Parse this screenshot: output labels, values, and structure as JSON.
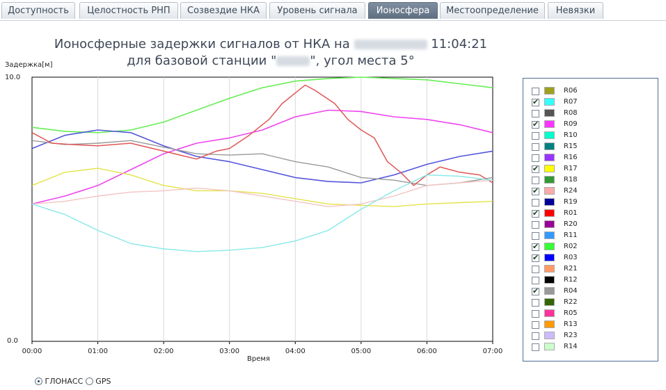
{
  "tabs": [
    {
      "label": "Доступность",
      "active": false
    },
    {
      "label": "Целостность РНП",
      "active": false
    },
    {
      "label": "Созвездие НКА",
      "active": false
    },
    {
      "label": "Уровень сигнала",
      "active": false
    },
    {
      "label": "Ионосфера",
      "active": true
    },
    {
      "label": "Местоопределение",
      "active": false
    },
    {
      "label": "Невязки",
      "active": false
    }
  ],
  "title": {
    "line1_prefix": "Ионосферные задержки сигналов от НКА на",
    "line1_time": "11:04:21",
    "line2_prefix": "для базовой станции \"",
    "line2_suffix": "\", угол места 5°"
  },
  "legend": [
    {
      "name": "R06",
      "checked": false,
      "color": "#a0a020"
    },
    {
      "name": "R07",
      "checked": true,
      "color": "#33ffff"
    },
    {
      "name": "R08",
      "checked": false,
      "color": "#555555"
    },
    {
      "name": "R09",
      "checked": true,
      "color": "#ff33ff"
    },
    {
      "name": "R10",
      "checked": false,
      "color": "#00ffcc"
    },
    {
      "name": "R15",
      "checked": false,
      "color": "#008080"
    },
    {
      "name": "R16",
      "checked": false,
      "color": "#9933ff"
    },
    {
      "name": "R17",
      "checked": true,
      "color": "#ffff00"
    },
    {
      "name": "R18",
      "checked": false,
      "color": "#339933"
    },
    {
      "name": "R24",
      "checked": true,
      "color": "#ffaaaa"
    },
    {
      "name": "R19",
      "checked": false,
      "color": "#000099"
    },
    {
      "name": "R01",
      "checked": true,
      "color": "#ff0000"
    },
    {
      "name": "R20",
      "checked": false,
      "color": "#990099"
    },
    {
      "name": "R11",
      "checked": false,
      "color": "#3399ff"
    },
    {
      "name": "R02",
      "checked": true,
      "color": "#33ff33"
    },
    {
      "name": "R03",
      "checked": true,
      "color": "#0000ff"
    },
    {
      "name": "R21",
      "checked": false,
      "color": "#ff9966"
    },
    {
      "name": "R12",
      "checked": false,
      "color": "#000000"
    },
    {
      "name": "R04",
      "checked": true,
      "color": "#999999"
    },
    {
      "name": "R22",
      "checked": false,
      "color": "#336600"
    },
    {
      "name": "R05",
      "checked": false,
      "color": "#ff3399"
    },
    {
      "name": "R13",
      "checked": false,
      "color": "#ff9900"
    },
    {
      "name": "R23",
      "checked": false,
      "color": "#ccbbff"
    },
    {
      "name": "R14",
      "checked": false,
      "color": "#ccffcc"
    }
  ],
  "radios": {
    "glonass": "ГЛОНАСС",
    "gps": "GPS",
    "selected": "glonass"
  },
  "chart_data": {
    "type": "line",
    "title": "",
    "ylabel": "Задержка[м]",
    "xlabel": "Время",
    "ylim": [
      0,
      10
    ],
    "ytick_labels": [
      "0.0",
      "10.0"
    ],
    "xlim": [
      0,
      7
    ],
    "xtick_labels": [
      "00:00",
      "01:00",
      "02:00",
      "03:00",
      "04:00",
      "05:00",
      "06:00",
      "07:00"
    ],
    "series": [
      {
        "name": "R02",
        "color": "#66ee55",
        "width": 1.6,
        "x": [
          0,
          0.5,
          1.0,
          1.5,
          2.0,
          2.5,
          3.0,
          3.5,
          4.0,
          4.5,
          5.0,
          5.5,
          6.0,
          6.5,
          7.0
        ],
        "y": [
          8.1,
          7.95,
          7.9,
          8.0,
          8.3,
          8.75,
          9.2,
          9.6,
          9.85,
          9.95,
          10.0,
          9.95,
          9.9,
          9.75,
          9.6
        ]
      },
      {
        "name": "R09",
        "color": "#ee44ee",
        "width": 1.6,
        "x": [
          0,
          0.5,
          1.0,
          1.5,
          2.0,
          2.5,
          3.0,
          3.5,
          4.0,
          4.5,
          5.0,
          5.5,
          6.0,
          6.5,
          7.0
        ],
        "y": [
          5.2,
          5.5,
          5.9,
          6.5,
          7.1,
          7.5,
          7.7,
          8.0,
          8.5,
          8.75,
          8.7,
          8.5,
          8.4,
          8.2,
          7.9
        ]
      },
      {
        "name": "R03",
        "color": "#5555dd",
        "width": 1.6,
        "x": [
          0,
          0.5,
          1.0,
          1.5,
          2.0,
          2.5,
          3.0,
          3.5,
          4.0,
          4.5,
          5.0,
          5.5,
          6.0,
          6.5,
          7.0
        ],
        "y": [
          7.3,
          7.8,
          8.0,
          7.9,
          7.4,
          7.0,
          6.8,
          6.5,
          6.2,
          6.05,
          6.0,
          6.3,
          6.7,
          7.0,
          7.2
        ]
      },
      {
        "name": "R04",
        "color": "#999999",
        "width": 1.4,
        "x": [
          0,
          0.5,
          1.0,
          1.5,
          2.0,
          2.5,
          3.0,
          3.5,
          4.0,
          4.5,
          5.0,
          5.5,
          6.0,
          6.5,
          7.0
        ],
        "y": [
          7.6,
          7.45,
          7.5,
          7.6,
          7.35,
          7.1,
          7.05,
          7.1,
          6.8,
          6.6,
          6.2,
          6.1,
          5.9,
          6.0,
          6.2
        ]
      },
      {
        "name": "R01",
        "color": "#e05555",
        "width": 1.5,
        "x": [
          0,
          0.3,
          0.6,
          1.0,
          1.5,
          2.0,
          2.5,
          2.8,
          3.0,
          3.3,
          3.6,
          3.8,
          4.0,
          4.15,
          4.3,
          4.6,
          4.8,
          5.0,
          5.2,
          5.4,
          5.6,
          5.8,
          6.0,
          6.2,
          6.5,
          6.8,
          7.0
        ],
        "y": [
          7.9,
          7.5,
          7.45,
          7.4,
          7.5,
          7.2,
          6.9,
          7.2,
          7.3,
          7.8,
          8.4,
          9.0,
          9.4,
          9.7,
          9.5,
          9.0,
          8.4,
          8.0,
          7.7,
          6.8,
          6.4,
          5.9,
          6.3,
          6.6,
          6.4,
          6.3,
          6.0
        ]
      },
      {
        "name": "R17",
        "color": "#e3e34a",
        "width": 1.4,
        "x": [
          0,
          0.5,
          1.0,
          1.5,
          2.0,
          2.5,
          3.0,
          3.5,
          4.0,
          4.5,
          5.0,
          5.5,
          6.0,
          6.5,
          7.0
        ],
        "y": [
          5.9,
          6.4,
          6.55,
          6.3,
          5.9,
          5.7,
          5.7,
          5.6,
          5.4,
          5.2,
          5.15,
          5.1,
          5.2,
          5.25,
          5.3
        ]
      },
      {
        "name": "R24",
        "color": "#f4c4c4",
        "width": 1.4,
        "x": [
          0,
          0.5,
          1.0,
          1.5,
          2.0,
          2.5,
          3.0,
          3.5,
          4.0,
          4.5,
          5.0,
          5.5,
          6.0,
          6.5,
          7.0
        ],
        "y": [
          5.2,
          5.3,
          5.5,
          5.65,
          5.7,
          5.8,
          5.7,
          5.5,
          5.3,
          5.1,
          5.2,
          5.5,
          5.9,
          6.0,
          6.1
        ]
      },
      {
        "name": "R07",
        "color": "#88e8e8",
        "width": 1.4,
        "x": [
          0,
          0.5,
          1.0,
          1.5,
          2.0,
          2.5,
          3.0,
          3.5,
          4.0,
          4.5,
          5.0,
          5.5,
          6.0,
          6.5,
          7.0
        ],
        "y": [
          5.2,
          4.8,
          4.2,
          3.7,
          3.5,
          3.4,
          3.45,
          3.55,
          3.8,
          4.2,
          5.0,
          5.7,
          6.3,
          6.25,
          6.1
        ]
      }
    ]
  }
}
